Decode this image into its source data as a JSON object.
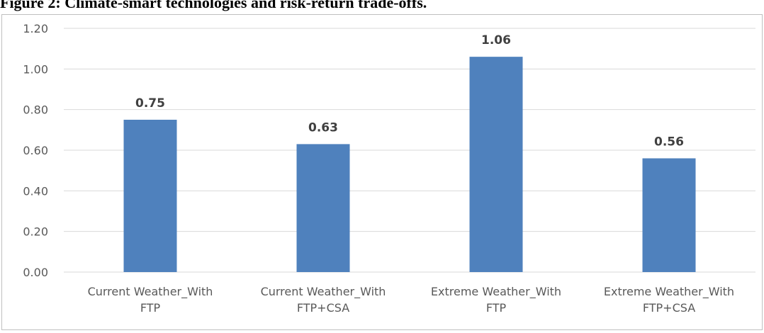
{
  "title": "Figure 2: Climate-smart technologies and risk-return trade-offs.",
  "chart_data": {
    "type": "bar",
    "categories": [
      [
        "Current Weather_With",
        "FTP"
      ],
      [
        "Current Weather_With",
        "FTP+CSA"
      ],
      [
        "Extreme Weather_With",
        "FTP"
      ],
      [
        "Extreme Weather_With",
        "FTP+CSA"
      ]
    ],
    "values": [
      0.75,
      0.63,
      1.06,
      0.56
    ],
    "data_labels": [
      "0.75",
      "0.63",
      "1.06",
      "0.56"
    ],
    "ylim": [
      0,
      1.2
    ],
    "yticks": [
      "0.00",
      "0.20",
      "0.40",
      "0.60",
      "0.80",
      "1.00",
      "1.20"
    ],
    "grid": true,
    "bar_color": "#4f81bd",
    "grid_color": "#d9d9d9"
  }
}
